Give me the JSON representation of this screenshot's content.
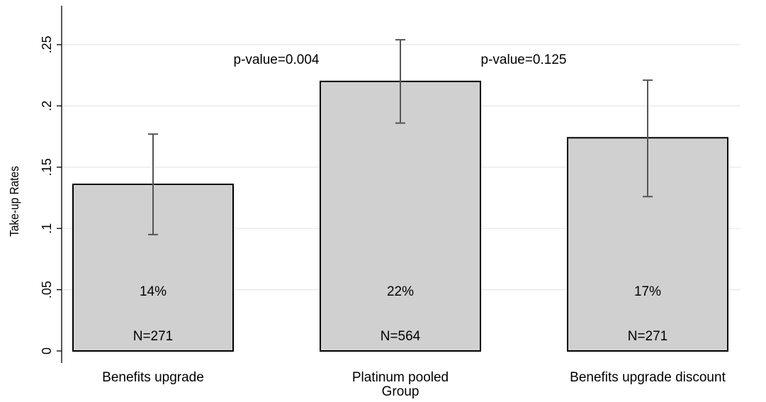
{
  "chart_data": {
    "type": "bar",
    "categories": [
      [
        "Benefits upgrade"
      ],
      [
        "Platinum pooled",
        "Group"
      ],
      [
        "Benefits upgrade discount"
      ]
    ],
    "values": [
      0.136,
      0.22,
      0.174
    ],
    "error_low": [
      0.095,
      0.186,
      0.126
    ],
    "error_high": [
      0.177,
      0.254,
      0.221
    ],
    "value_labels": [
      "14%",
      "22%",
      "17%"
    ],
    "n_labels": [
      "N=271",
      "N=564",
      "N=271"
    ],
    "annotations": [
      "p-value=0.004",
      "p-value=0.125"
    ],
    "xlabel": "",
    "ylabel": "Take-up Rates",
    "ylim": [
      0,
      0.25
    ],
    "yticks": [
      0,
      0.05,
      0.1,
      0.15,
      0.2,
      0.25
    ],
    "ytick_labels": [
      "0",
      ".05",
      ".1",
      ".15",
      ".2",
      ".25"
    ],
    "grid": true,
    "colors": {
      "bar_fill": "#d0d0d0",
      "bar_stroke": "#000000",
      "error_bar": "#555555",
      "grid": "#e6e6e6"
    }
  }
}
